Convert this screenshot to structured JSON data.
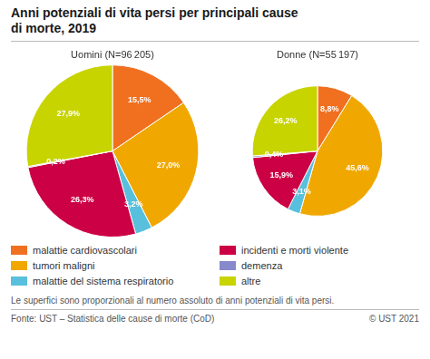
{
  "title": [
    "Anni potenziali di vita persi per principali cause",
    "di morte, 2019"
  ],
  "chart_data": [
    {
      "type": "pie",
      "title": "Uomini (N=96 205)",
      "total": 96205,
      "categories": [
        "malattie cardiovascolari",
        "tumori maligni",
        "malattie del sistema respiratorio",
        "incidenti e morti violente",
        "demenza",
        "altre"
      ],
      "values": [
        15.5,
        27.0,
        3.2,
        26.3,
        0.2,
        27.9
      ],
      "value_labels": [
        "15,5%",
        "27,0%",
        "3,2%",
        "26,3%",
        "0,2%",
        "27,9%"
      ],
      "colors": [
        "#f07020",
        "#f0a800",
        "#58c0dc",
        "#cc0044",
        "#8888cc",
        "#c8d400"
      ],
      "data_labels": true,
      "legend": "bottom"
    },
    {
      "type": "pie",
      "title": "Donne (N=55 197)",
      "total": 55197,
      "categories": [
        "malattie cardiovascolari",
        "tumori maligni",
        "malattie del sistema respiratorio",
        "incidenti e morti violente",
        "demenza",
        "altre"
      ],
      "values": [
        8.8,
        45.6,
        3.1,
        15.9,
        0.4,
        26.2
      ],
      "value_labels": [
        "8,8%",
        "45,6%",
        "3,1%",
        "15,9%",
        "0,4%",
        "26,2%"
      ],
      "colors": [
        "#f07020",
        "#f0a800",
        "#58c0dc",
        "#cc0044",
        "#8888cc",
        "#c8d400"
      ],
      "data_labels": true,
      "legend": "bottom"
    }
  ],
  "annotations": [
    "Le superfici sono proporzionali al numero assoluto di anni potenziali di vita persi.",
    "Fonte: UST – Statistica delle cause di morte (CoD)",
    "© UST 2021"
  ]
}
